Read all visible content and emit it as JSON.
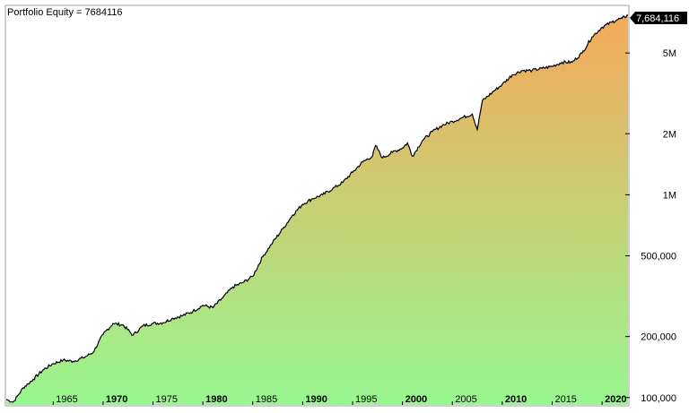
{
  "chart_data": {
    "type": "area",
    "title": "Portfolio Equity = 7684116",
    "last_value_label": "7,684,116",
    "y_scale": "log",
    "ylim": [
      92000,
      8500000
    ],
    "xlim": [
      1960.3,
      2022.6
    ],
    "y_ticks": [
      {
        "value": 100000,
        "label": "100,000"
      },
      {
        "value": 200000,
        "label": "200,000"
      },
      {
        "value": 500000,
        "label": "500,000"
      },
      {
        "value": 1000000,
        "label": "1M"
      },
      {
        "value": 2000000,
        "label": "2M"
      },
      {
        "value": 5000000,
        "label": "5M"
      }
    ],
    "x_ticks": [
      {
        "value": 1965,
        "label": "1965",
        "bold": false
      },
      {
        "value": 1970,
        "label": "1970",
        "bold": true
      },
      {
        "value": 1975,
        "label": "1975",
        "bold": false
      },
      {
        "value": 1980,
        "label": "1980",
        "bold": true
      },
      {
        "value": 1985,
        "label": "1985",
        "bold": false
      },
      {
        "value": 1990,
        "label": "1990",
        "bold": true
      },
      {
        "value": 1995,
        "label": "1995",
        "bold": false
      },
      {
        "value": 2000,
        "label": "2000",
        "bold": true
      },
      {
        "value": 2005,
        "label": "2005",
        "bold": false
      },
      {
        "value": 2010,
        "label": "2010",
        "bold": true
      },
      {
        "value": 2015,
        "label": "2015",
        "bold": false
      },
      {
        "value": 2020,
        "label": "2020",
        "bold": true
      }
    ],
    "x": [
      1960.3,
      1961.0,
      1961.5,
      1962.0,
      1962.5,
      1963.0,
      1964.0,
      1965.0,
      1966.0,
      1967.0,
      1968.0,
      1969.0,
      1970.0,
      1971.0,
      1972.0,
      1973.0,
      1974.0,
      1975.0,
      1976.0,
      1977.0,
      1978.0,
      1979.0,
      1980.0,
      1981.0,
      1982.0,
      1983.0,
      1984.0,
      1985.0,
      1986.0,
      1987.0,
      1988.0,
      1989.0,
      1990.0,
      1991.0,
      1992.0,
      1993.0,
      1994.0,
      1995.0,
      1996.0,
      1997.0,
      1997.3,
      1998.0,
      1999.0,
      2000.0,
      2000.5,
      2001.0,
      2002.0,
      2003.0,
      2004.0,
      2005.0,
      2006.0,
      2007.0,
      2007.5,
      2008.0,
      2009.0,
      2010.0,
      2011.0,
      2012.0,
      2013.0,
      2014.0,
      2015.0,
      2016.0,
      2017.0,
      2018.0,
      2019.0,
      2020.0,
      2021.0,
      2021.5,
      2022.0,
      2022.6
    ],
    "values": [
      98000,
      95000,
      103000,
      112000,
      117000,
      123000,
      137000,
      147000,
      153000,
      151000,
      157000,
      167000,
      205000,
      232000,
      228000,
      203000,
      226000,
      232000,
      234000,
      246000,
      254000,
      266000,
      285000,
      278000,
      311000,
      351000,
      369000,
      396000,
      495000,
      583000,
      678000,
      795000,
      898000,
      958000,
      1000000,
      1070000,
      1150000,
      1290000,
      1450000,
      1550000,
      1750000,
      1520000,
      1620000,
      1700000,
      1800000,
      1550000,
      1850000,
      2050000,
      2200000,
      2300000,
      2400000,
      2500000,
      2100000,
      2900000,
      3200000,
      3500000,
      3900000,
      4100000,
      4100000,
      4200000,
      4300000,
      4500000,
      4500000,
      5000000,
      6000000,
      6700000,
      7100000,
      7300000,
      7400000,
      7684116
    ],
    "colors": {
      "area_top": "#f5a95a",
      "area_bottom": "#98f790",
      "line": "#000000",
      "label_bg": "#000000",
      "border": "#a0a0a0"
    },
    "grid": false
  }
}
